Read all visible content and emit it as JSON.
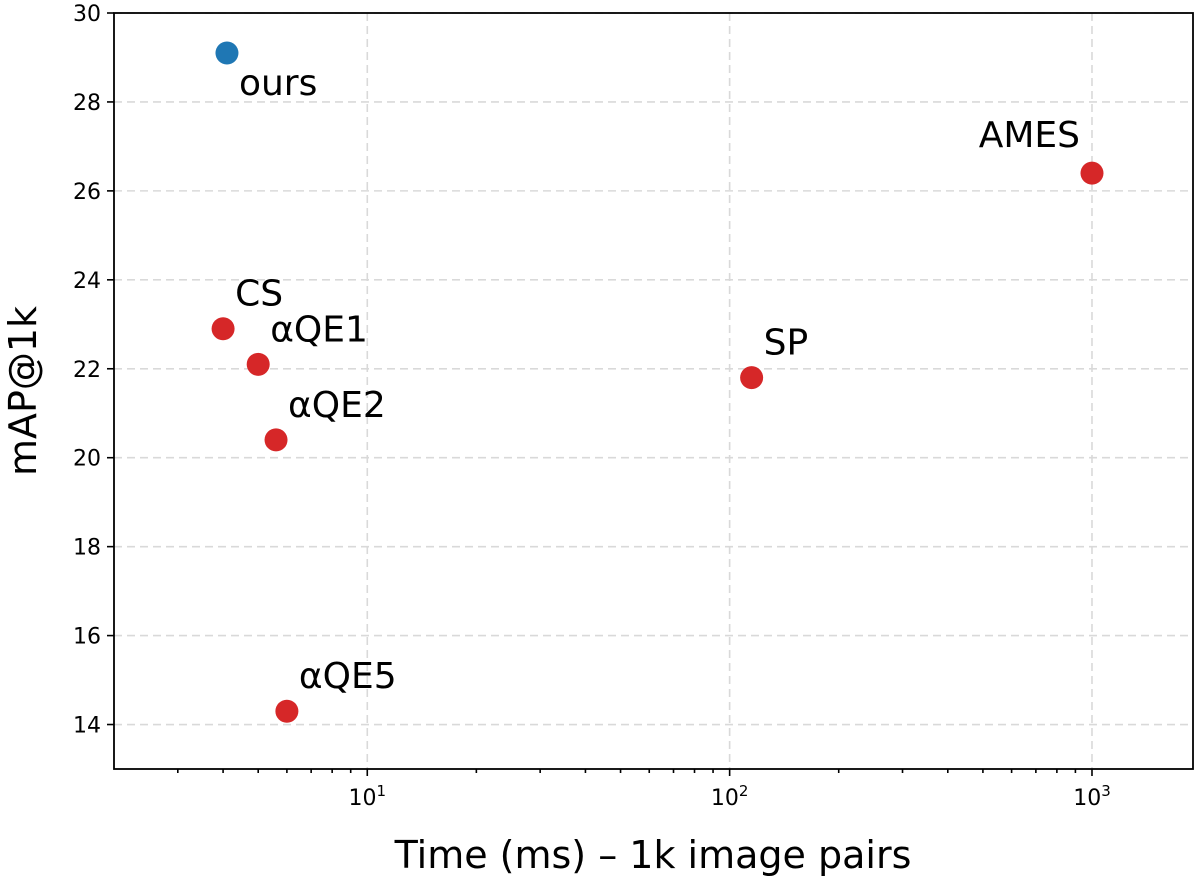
{
  "chart_data": {
    "type": "scatter",
    "xlabel": "Time (ms) – 1k image pairs",
    "ylabel": "mAP@1k",
    "x_scale": "log",
    "xlim": [
      2,
      1900
    ],
    "ylim": [
      13,
      30
    ],
    "grid": true,
    "x_ticks": [
      {
        "value": 10,
        "base": "10",
        "exp": "1"
      },
      {
        "value": 100,
        "base": "10",
        "exp": "2"
      },
      {
        "value": 1000,
        "base": "10",
        "exp": "3"
      }
    ],
    "y_ticks": [
      14,
      16,
      18,
      20,
      22,
      24,
      26,
      28,
      30
    ],
    "colors": {
      "ours": "#1f77b4",
      "baseline": "#d62728"
    },
    "points": [
      {
        "label": "ours",
        "x": 4.1,
        "y": 29.1,
        "color": "#1f77b4",
        "label_pos": "below-right"
      },
      {
        "label": "CS",
        "x": 4.0,
        "y": 22.9,
        "color": "#d62728",
        "label_pos": "above-right"
      },
      {
        "label": "αQE1",
        "x": 5.0,
        "y": 22.1,
        "color": "#d62728",
        "label_pos": "above-right"
      },
      {
        "label": "αQE2",
        "x": 5.6,
        "y": 20.4,
        "color": "#d62728",
        "label_pos": "above-right"
      },
      {
        "label": "αQE5",
        "x": 6.0,
        "y": 14.3,
        "color": "#d62728",
        "label_pos": "above-right"
      },
      {
        "label": "SP",
        "x": 115,
        "y": 21.8,
        "color": "#d62728",
        "label_pos": "above-right"
      },
      {
        "label": "AMES",
        "x": 1000,
        "y": 26.4,
        "color": "#d62728",
        "label_pos": "above-left"
      }
    ]
  }
}
